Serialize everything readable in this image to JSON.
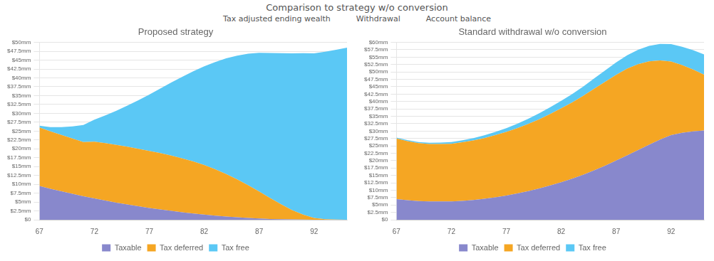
{
  "title": "Comparison to strategy w/o conversion",
  "annotations": [
    "Tax adjusted ending wealth",
    "Withdrawal",
    "Account balance"
  ],
  "chart_data": [
    {
      "type": "area",
      "title": "Proposed strategy",
      "stacked": true,
      "grid": "y",
      "legend": "bottom",
      "x": [
        67,
        68,
        69,
        70,
        71,
        72,
        73,
        74,
        75,
        76,
        77,
        78,
        79,
        80,
        81,
        82,
        83,
        84,
        85,
        86,
        87,
        88,
        89,
        90,
        91,
        92,
        93,
        94,
        95
      ],
      "xlim": [
        67,
        95
      ],
      "xticks": [
        67,
        72,
        77,
        82,
        87,
        92
      ],
      "ylim": [
        0,
        50000000
      ],
      "yticks": [
        {
          "value": 0,
          "label": "$0"
        },
        {
          "value": 2500000,
          "label": "$2.5mm"
        },
        {
          "value": 5000000,
          "label": "$5mm"
        },
        {
          "value": 7500000,
          "label": "$7.5mm"
        },
        {
          "value": 10000000,
          "label": "$10mm"
        },
        {
          "value": 12500000,
          "label": "$12.5mm"
        },
        {
          "value": 15000000,
          "label": "$15mm"
        },
        {
          "value": 17500000,
          "label": "$17.5mm"
        },
        {
          "value": 20000000,
          "label": "$20mm"
        },
        {
          "value": 22500000,
          "label": "$22.5mm"
        },
        {
          "value": 25000000,
          "label": "$25mm"
        },
        {
          "value": 27500000,
          "label": "$27.5mm"
        },
        {
          "value": 30000000,
          "label": "$30mm"
        },
        {
          "value": 32500000,
          "label": "$32.5mm"
        },
        {
          "value": 35000000,
          "label": "$35mm"
        },
        {
          "value": 37500000,
          "label": "$37.5mm"
        },
        {
          "value": 40000000,
          "label": "$40mm"
        },
        {
          "value": 42500000,
          "label": "$42.5mm"
        },
        {
          "value": 45000000,
          "label": "$45mm"
        },
        {
          "value": 47500000,
          "label": "$47.5mm"
        },
        {
          "value": 50000000,
          "label": "$50mm"
        }
      ],
      "series": [
        {
          "name": "Taxable",
          "color": "#8888cc",
          "values": [
            9500000,
            8700000,
            8000000,
            7300000,
            6600000,
            6000000,
            5400000,
            4800000,
            4300000,
            3800000,
            3300000,
            2900000,
            2500000,
            2100000,
            1750000,
            1450000,
            1150000,
            900000,
            680000,
            500000,
            350000,
            220000,
            140000,
            80000,
            40000,
            20000,
            10000,
            0,
            0
          ]
        },
        {
          "name": "Tax deferred",
          "color": "#f5a623",
          "values": [
            16500000,
            16200000,
            15900000,
            15600000,
            15300000,
            16000000,
            16200000,
            16300000,
            16300000,
            16200000,
            16100000,
            15900000,
            15600000,
            15200000,
            14700000,
            14000000,
            13100000,
            12000000,
            10700000,
            9200000,
            7600000,
            5900000,
            4200000,
            2650000,
            1400000,
            500000,
            150000,
            30000,
            0
          ]
        },
        {
          "name": "Tax free",
          "color": "#5bc8f5",
          "values": [
            500000,
            1200000,
            2200000,
            3400000,
            4800000,
            6200000,
            7800000,
            9600000,
            11600000,
            13700000,
            15900000,
            18200000,
            20600000,
            23000000,
            25400000,
            27800000,
            30200000,
            32600000,
            34900000,
            37100000,
            39100000,
            40900000,
            42600000,
            44200000,
            45500000,
            46400000,
            47200000,
            47900000,
            48500000
          ]
        }
      ]
    },
    {
      "type": "area",
      "title": "Standard withdrawal w/o conversion",
      "stacked": true,
      "grid": "y",
      "legend": "bottom",
      "x": [
        67,
        68,
        69,
        70,
        71,
        72,
        73,
        74,
        75,
        76,
        77,
        78,
        79,
        80,
        81,
        82,
        83,
        84,
        85,
        86,
        87,
        88,
        89,
        90,
        91,
        92,
        93,
        94,
        95
      ],
      "xlim": [
        67,
        95
      ],
      "xticks": [
        67,
        72,
        77,
        82,
        87,
        92
      ],
      "ylim": [
        0,
        60000000
      ],
      "yticks": [
        {
          "value": 0,
          "label": "$0"
        },
        {
          "value": 2500000,
          "label": "$2.5mm"
        },
        {
          "value": 5000000,
          "label": "$5mm"
        },
        {
          "value": 7500000,
          "label": "$7.5mm"
        },
        {
          "value": 10000000,
          "label": "$10mm"
        },
        {
          "value": 12500000,
          "label": "$12.5mm"
        },
        {
          "value": 15000000,
          "label": "$15mm"
        },
        {
          "value": 17500000,
          "label": "$17.5mm"
        },
        {
          "value": 20000000,
          "label": "$20mm"
        },
        {
          "value": 22500000,
          "label": "$22.5mm"
        },
        {
          "value": 25000000,
          "label": "$25mm"
        },
        {
          "value": 27500000,
          "label": "$27.5mm"
        },
        {
          "value": 30000000,
          "label": "$30mm"
        },
        {
          "value": 32500000,
          "label": "$32.5mm"
        },
        {
          "value": 35000000,
          "label": "$35mm"
        },
        {
          "value": 37500000,
          "label": "$37.5mm"
        },
        {
          "value": 40000000,
          "label": "$40mm"
        },
        {
          "value": 42500000,
          "label": "$42.5mm"
        },
        {
          "value": 45000000,
          "label": "$45mm"
        },
        {
          "value": 47500000,
          "label": "$47.5mm"
        },
        {
          "value": 50000000,
          "label": "$50mm"
        },
        {
          "value": 52500000,
          "label": "$52.5mm"
        },
        {
          "value": 55000000,
          "label": "$55mm"
        },
        {
          "value": 57500000,
          "label": "$57.5mm"
        },
        {
          "value": 60000000,
          "label": "$60mm"
        }
      ],
      "series": [
        {
          "name": "Taxable",
          "color": "#8888cc",
          "values": [
            7000000,
            6600000,
            6300000,
            6200000,
            6200000,
            6200000,
            6400000,
            6700000,
            7100000,
            7600000,
            8200000,
            8900000,
            9700000,
            10600000,
            11600000,
            12700000,
            13900000,
            15200000,
            16700000,
            18300000,
            20000000,
            21800000,
            23600000,
            25400000,
            27100000,
            28600000,
            29400000,
            29900000,
            30200000
          ]
        },
        {
          "name": "Tax deferred",
          "color": "#f5a623",
          "values": [
            20500000,
            20000000,
            19600000,
            19400000,
            19400000,
            19500000,
            19800000,
            20100000,
            20500000,
            21000000,
            21500000,
            22100000,
            22700000,
            23400000,
            24200000,
            25000000,
            25800000,
            26700000,
            27600000,
            28400000,
            29000000,
            29300000,
            29000000,
            28200000,
            26800000,
            24900000,
            22900000,
            20900000,
            18900000
          ]
        },
        {
          "name": "Tax free",
          "color": "#5bc8f5",
          "values": [
            300000,
            350000,
            400000,
            450000,
            500000,
            600000,
            700000,
            800000,
            950000,
            1100000,
            1300000,
            1500000,
            1750000,
            2000000,
            2250000,
            2550000,
            2850000,
            3150000,
            3500000,
            3850000,
            4200000,
            4550000,
            4900000,
            5250000,
            5600000,
            5950000,
            6250000,
            6550000,
            6850000
          ]
        }
      ]
    }
  ]
}
